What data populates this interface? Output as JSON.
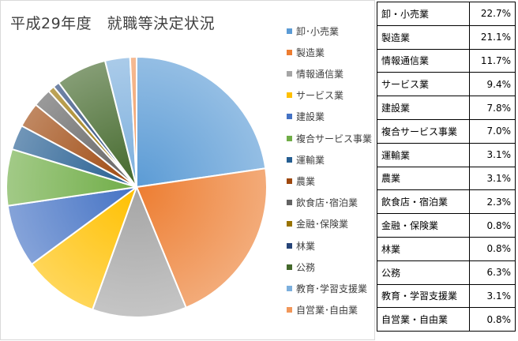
{
  "chart_data": {
    "type": "pie",
    "title": "平成29年度　就職等決定状況",
    "categories": [
      "卸・小売業",
      "製造業",
      "情報通信業",
      "サービス業",
      "建設業",
      "複合サービス事業",
      "運輸業",
      "農業",
      "飲食店・宿泊業",
      "金融・保険業",
      "林業",
      "公務",
      "教育・学習支援業",
      "自営業・自由業"
    ],
    "legend_labels": [
      "卸･小売業",
      "製造業",
      "情報通信業",
      "サービス業",
      "建設業",
      "複合サービス事業",
      "運輸業",
      "農業",
      "飲食店･宿泊業",
      "金融･保険業",
      "林業",
      "公務",
      "教育･学習支援業",
      "自営業･自由業"
    ],
    "values": [
      22.7,
      21.1,
      11.7,
      9.4,
      7.8,
      7.0,
      3.1,
      3.1,
      2.3,
      0.8,
      0.8,
      6.3,
      3.1,
      0.8
    ],
    "colors": [
      "#5b9bd5",
      "#ed7d31",
      "#a5a5a5",
      "#ffc000",
      "#4472c4",
      "#70ad47",
      "#255e91",
      "#9e480e",
      "#636363",
      "#997300",
      "#264478",
      "#43682b",
      "#7cafdd",
      "#f1975a"
    ],
    "legend_position": "right",
    "data_labels": false
  },
  "table": {
    "rows": [
      {
        "label": "卸・小売業",
        "value": "22.7%"
      },
      {
        "label": "製造業",
        "value": "21.1%"
      },
      {
        "label": "情報通信業",
        "value": "11.7%"
      },
      {
        "label": "サービス業",
        "value": "9.4%"
      },
      {
        "label": "建設業",
        "value": "7.8%"
      },
      {
        "label": "複合サービス事業",
        "value": "7.0%"
      },
      {
        "label": "運輸業",
        "value": "3.1%"
      },
      {
        "label": "農業",
        "value": "3.1%"
      },
      {
        "label": "飲食店・宿泊業",
        "value": "2.3%"
      },
      {
        "label": "金融・保険業",
        "value": "0.8%"
      },
      {
        "label": "林業",
        "value": "0.8%"
      },
      {
        "label": "公務",
        "value": "6.3%"
      },
      {
        "label": "教育・学習支援業",
        "value": "3.1%"
      },
      {
        "label": "自営業・自由業",
        "value": "0.8%"
      }
    ]
  }
}
